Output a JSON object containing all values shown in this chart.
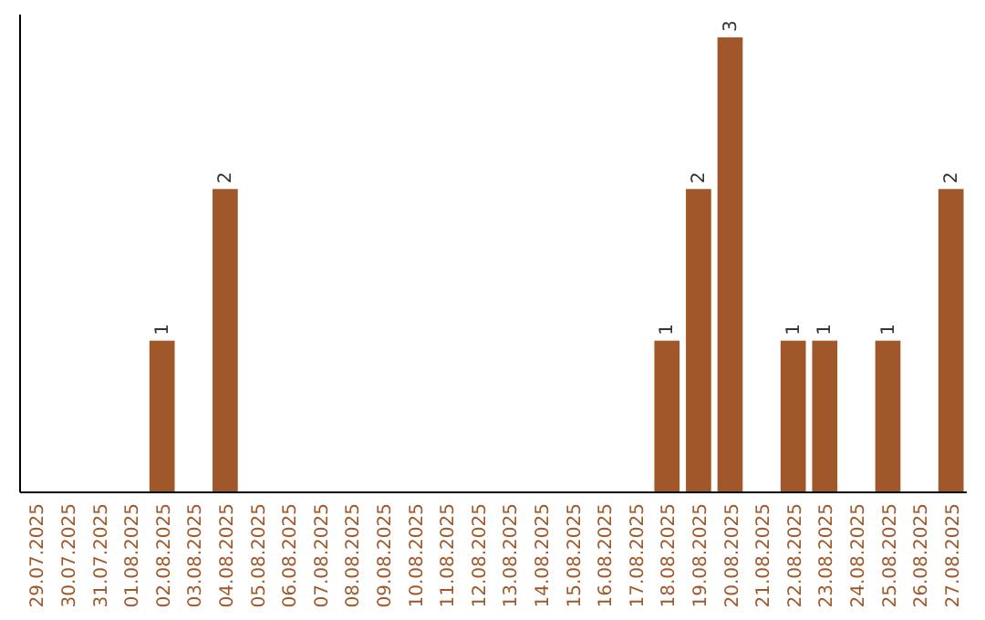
{
  "chart_data": {
    "type": "bar",
    "categories": [
      "29.07.2025",
      "30.07.2025",
      "31.07.2025",
      "01.08.2025",
      "02.08.2025",
      "03.08.2025",
      "04.08.2025",
      "05.08.2025",
      "06.08.2025",
      "07.08.2025",
      "08.08.2025",
      "09.08.2025",
      "10.08.2025",
      "11.08.2025",
      "12.08.2025",
      "13.08.2025",
      "14.08.2025",
      "15.08.2025",
      "16.08.2025",
      "17.08.2025",
      "18.08.2025",
      "19.08.2025",
      "20.08.2025",
      "21.08.2025",
      "22.08.2025",
      "23.08.2025",
      "24.08.2025",
      "25.08.2025",
      "26.08.2025",
      "27.08.2025"
    ],
    "values": [
      0,
      0,
      0,
      0,
      1,
      0,
      2,
      0,
      0,
      0,
      0,
      0,
      0,
      0,
      0,
      0,
      0,
      0,
      0,
      0,
      1,
      2,
      3,
      0,
      1,
      1,
      0,
      1,
      0,
      2
    ],
    "value_labels": [
      null,
      null,
      null,
      null,
      "1",
      null,
      "2",
      null,
      null,
      null,
      null,
      null,
      null,
      null,
      null,
      null,
      null,
      null,
      null,
      null,
      "1",
      "2",
      "3",
      null,
      "1",
      "1",
      null,
      "1",
      null,
      "2"
    ],
    "color": "#a0582a"
  }
}
